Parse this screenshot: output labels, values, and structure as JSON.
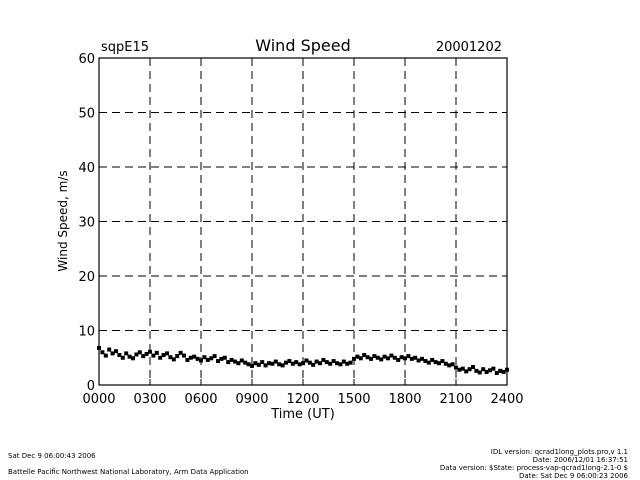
{
  "chart_data": {
    "type": "scatter",
    "site": "sqpE15",
    "title": "Wind Speed",
    "date": "20001202",
    "xlabel": "Time (UT)",
    "ylabel": "Wind Speed, m/s",
    "xlim": [
      0,
      2400
    ],
    "ylim": [
      0,
      60
    ],
    "x_ticks": [
      "0000",
      "0300",
      "0600",
      "0900",
      "1200",
      "1500",
      "1800",
      "2100",
      "2400"
    ],
    "y_ticks": [
      "0",
      "10",
      "20",
      "30",
      "40",
      "50",
      "60"
    ],
    "grid": true,
    "marker_color": "#000000",
    "series": [
      {
        "x": [
          0,
          20,
          40,
          60,
          80,
          100,
          120,
          140,
          160,
          180,
          200,
          220,
          240,
          260,
          280,
          300,
          320,
          340,
          360,
          380,
          400,
          420,
          440,
          460,
          480,
          500,
          520,
          540,
          560,
          580,
          600,
          620,
          640,
          660,
          680,
          700,
          720,
          740,
          760,
          780,
          800,
          820,
          840,
          860,
          880,
          900,
          920,
          940,
          960,
          980,
          1000,
          1020,
          1040,
          1060,
          1080,
          1100,
          1120,
          1140,
          1160,
          1180,
          1200,
          1220,
          1240,
          1260,
          1280,
          1300,
          1320,
          1340,
          1360,
          1380,
          1400,
          1420,
          1440,
          1460,
          1480,
          1500,
          1520,
          1540,
          1560,
          1580,
          1600,
          1620,
          1640,
          1660,
          1680,
          1700,
          1720,
          1740,
          1760,
          1780,
          1800,
          1820,
          1840,
          1860,
          1880,
          1900,
          1920,
          1940,
          1960,
          1980,
          2000,
          2020,
          2040,
          2060,
          2080,
          2100,
          2120,
          2140,
          2160,
          2180,
          2200,
          2220,
          2240,
          2260,
          2280,
          2300,
          2320,
          2340,
          2360,
          2380,
          2400
        ],
        "y": [
          6.8,
          6.0,
          5.4,
          6.5,
          5.8,
          6.2,
          5.5,
          5.0,
          5.8,
          5.2,
          4.9,
          5.6,
          6.0,
          5.3,
          5.7,
          6.1,
          5.4,
          5.9,
          5.0,
          5.5,
          5.8,
          5.1,
          4.7,
          5.3,
          5.9,
          5.4,
          4.6,
          5.0,
          5.2,
          4.8,
          4.5,
          5.1,
          4.6,
          4.9,
          5.3,
          4.4,
          4.8,
          5.0,
          4.2,
          4.6,
          4.3,
          4.0,
          4.5,
          4.1,
          3.8,
          3.5,
          4.0,
          3.7,
          4.2,
          3.6,
          4.0,
          3.9,
          4.3,
          3.8,
          3.6,
          4.1,
          4.4,
          3.9,
          4.2,
          3.8,
          4.0,
          4.5,
          4.1,
          3.7,
          4.3,
          4.0,
          4.6,
          4.2,
          3.9,
          4.4,
          4.0,
          3.8,
          4.3,
          3.9,
          4.1,
          4.8,
          5.2,
          4.9,
          5.5,
          5.1,
          4.8,
          5.3,
          5.0,
          4.7,
          5.2,
          4.9,
          5.4,
          5.0,
          4.6,
          5.1,
          4.9,
          5.3,
          4.8,
          5.0,
          4.5,
          4.8,
          4.4,
          4.1,
          4.6,
          4.2,
          4.0,
          4.4,
          3.9,
          3.6,
          3.8,
          3.2,
          2.8,
          3.0,
          2.5,
          2.9,
          3.3,
          2.6,
          2.3,
          2.9,
          2.4,
          2.7,
          3.0,
          2.2,
          2.6,
          2.4,
          2.8
        ]
      }
    ]
  },
  "footer": {
    "left_line1": "Sat Dec  9 06:00:43 2006",
    "left_line2": "Battelle Pacific Northwest National Laboratory, Arm Data Application",
    "right_line1": "IDL version: qcrad1long_plots.pro,v 1.1",
    "right_line2": "Date: 2006/12/01 16:37:51",
    "right_line3": "Data version: $State: process-vap-qcrad1long-2.1-0 $",
    "right_line4": "Date: Sat Dec  9 06:00:23 2006"
  }
}
